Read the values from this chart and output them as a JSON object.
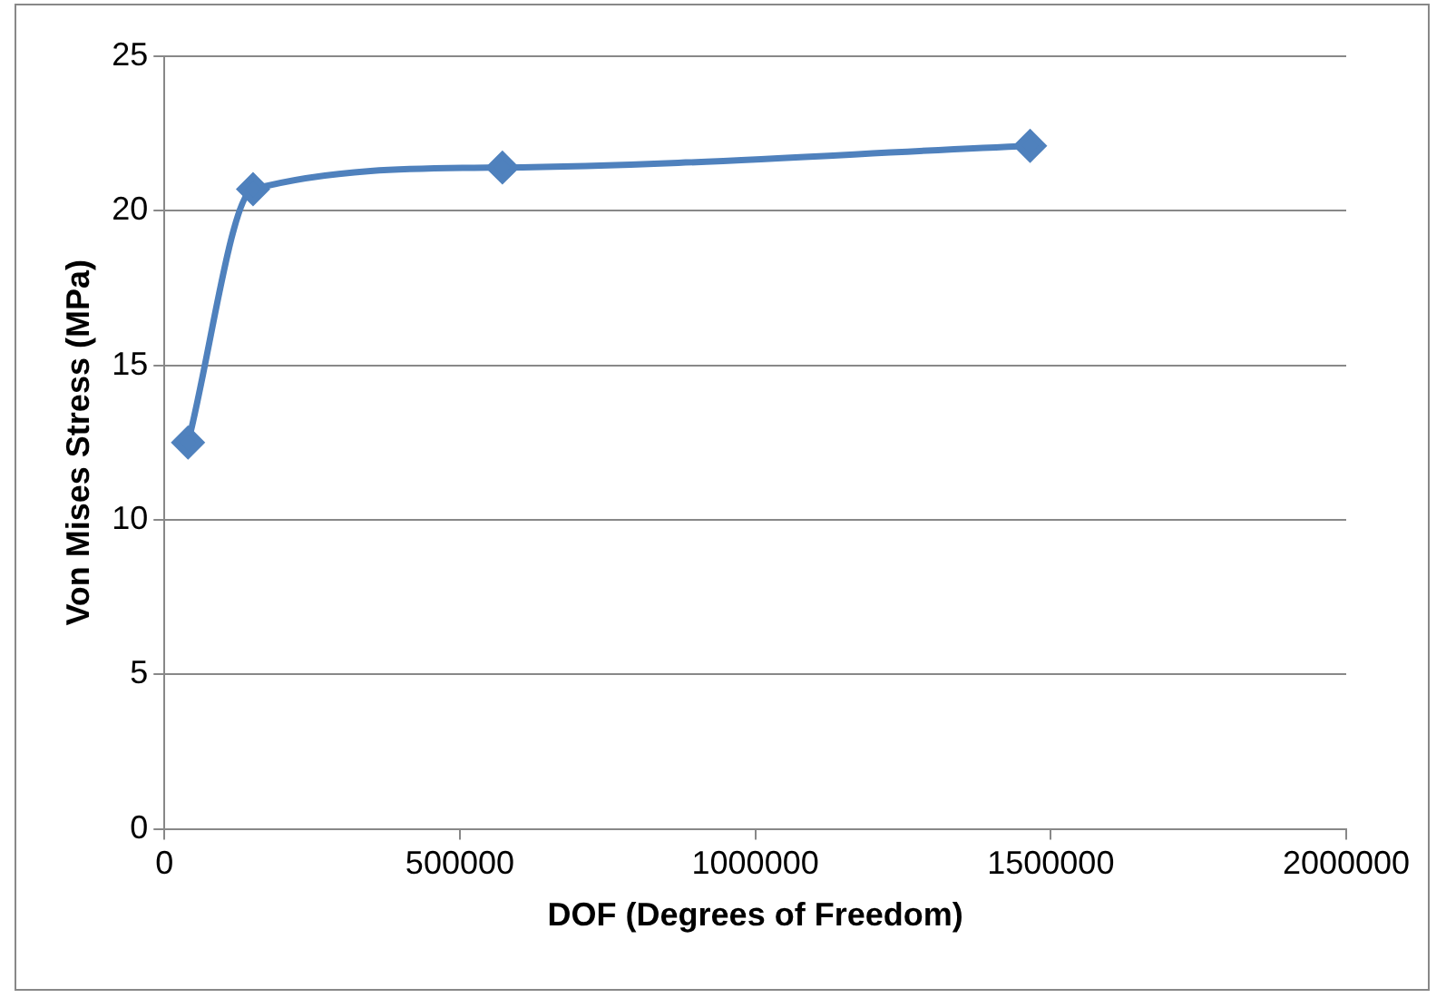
{
  "chart_data": {
    "type": "line",
    "xlabel": "DOF (Degrees of Freedom)",
    "ylabel": "Von Mises Stress (MPa)",
    "x": [
      40000,
      150000,
      572000,
      1465000
    ],
    "series": [
      {
        "color": "#4f81bd",
        "values": [
          12.5,
          20.7,
          21.4,
          22.1
        ]
      }
    ],
    "xlim": [
      0,
      2000000
    ],
    "xticks": [
      0,
      500000,
      1000000,
      1500000,
      2000000
    ],
    "ylim": [
      0,
      25
    ],
    "yticks": [
      0,
      5,
      10,
      15,
      20,
      25
    ],
    "grid": "y",
    "legend": false,
    "marker": "diamond",
    "line_style": "solid"
  }
}
